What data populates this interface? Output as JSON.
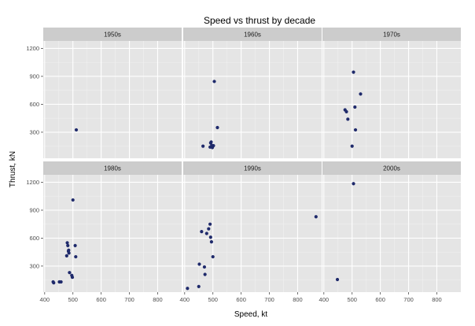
{
  "chart_data": {
    "type": "scatter",
    "title": "Speed vs thrust by decade",
    "xlabel": "Speed, kt",
    "ylabel": "Thrust, kN",
    "xlim": [
      395,
      885
    ],
    "ylim": [
      20,
      1280
    ],
    "xticks": [
      400,
      500,
      600,
      700,
      800
    ],
    "yticks": [
      300,
      600,
      900,
      1200
    ],
    "grid": true,
    "point_color": "#1f2a6b",
    "panel_bg": "#e5e5e5",
    "strip_bg": "#cccccc",
    "panels": [
      {
        "label": "1950s",
        "points": [
          [
            512,
            325
          ]
        ]
      },
      {
        "label": "1960s",
        "points": [
          [
            465,
            150
          ],
          [
            490,
            140
          ],
          [
            492,
            185
          ],
          [
            494,
            195
          ],
          [
            496,
            160
          ],
          [
            498,
            135
          ],
          [
            502,
            155
          ],
          [
            505,
            845
          ],
          [
            516,
            350
          ]
        ]
      },
      {
        "label": "1970s",
        "points": [
          [
            475,
            540
          ],
          [
            480,
            520
          ],
          [
            485,
            440
          ],
          [
            500,
            150
          ],
          [
            505,
            945
          ],
          [
            510,
            570
          ],
          [
            512,
            325
          ],
          [
            530,
            710
          ]
        ]
      },
      {
        "label": "1980s",
        "points": [
          [
            430,
            130
          ],
          [
            432,
            120
          ],
          [
            452,
            130
          ],
          [
            458,
            130
          ],
          [
            478,
            410
          ],
          [
            480,
            550
          ],
          [
            482,
            520
          ],
          [
            484,
            460
          ],
          [
            485,
            470
          ],
          [
            486,
            440
          ],
          [
            488,
            230
          ],
          [
            496,
            200
          ],
          [
            498,
            180
          ],
          [
            500,
            1010
          ],
          [
            508,
            520
          ],
          [
            510,
            400
          ]
        ]
      },
      {
        "label": "1990s",
        "points": [
          [
            410,
            60
          ],
          [
            450,
            80
          ],
          [
            452,
            320
          ],
          [
            460,
            670
          ],
          [
            470,
            290
          ],
          [
            472,
            210
          ],
          [
            478,
            650
          ],
          [
            485,
            700
          ],
          [
            490,
            750
          ],
          [
            492,
            610
          ],
          [
            495,
            560
          ],
          [
            500,
            400
          ],
          [
            865,
            830
          ]
        ]
      },
      {
        "label": "2000s",
        "points": [
          [
            448,
            155
          ],
          [
            505,
            1185
          ]
        ]
      }
    ]
  }
}
